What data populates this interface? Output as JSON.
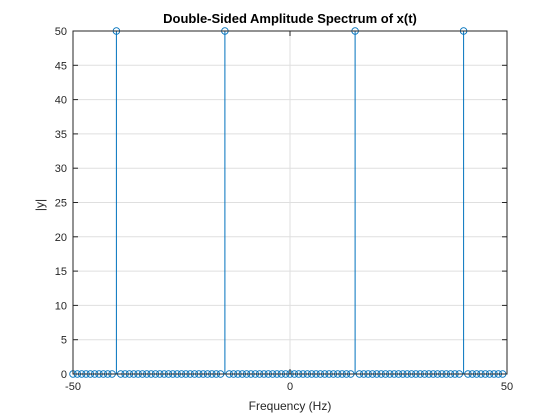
{
  "chart_data": {
    "type": "stem",
    "title": "Double-Sided Amplitude Spectrum of x(t)",
    "xlabel": "Frequency (Hz)",
    "ylabel": "|y|",
    "xlim": [
      -50,
      50
    ],
    "ylim": [
      0,
      50
    ],
    "x_ticks": [
      -50,
      0,
      50
    ],
    "y_ticks": [
      0,
      5,
      10,
      15,
      20,
      25,
      30,
      35,
      40,
      45,
      50
    ],
    "grid": true,
    "sample_spacing": 1,
    "peaks": [
      {
        "x": -40,
        "y": 50
      },
      {
        "x": -15,
        "y": 50
      },
      {
        "x": 15,
        "y": 50
      },
      {
        "x": 40,
        "y": 50
      }
    ],
    "baseline_value": 0,
    "colors": {
      "stem": "#0072BD",
      "grid": "#dfdfdf",
      "axes": "#262626"
    }
  }
}
